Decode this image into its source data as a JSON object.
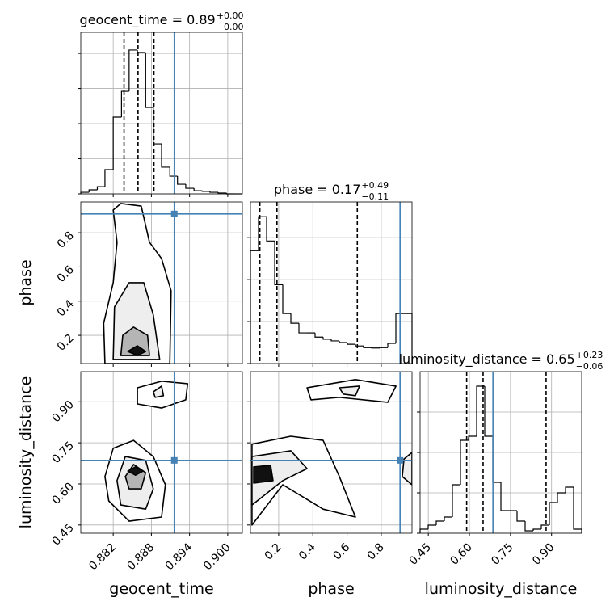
{
  "chart_data": {
    "type": "corner",
    "grid": true,
    "truth_color": "#4682b4",
    "hist_color": "#000000",
    "contour_color": "#000000",
    "contour_fills": [
      "#ffffff",
      "#eeeeee",
      "#b5b5b5",
      "#111111"
    ],
    "parameters": [
      {
        "name": "geocent_time",
        "title": "geocent_time = 0.89",
        "plus": "+0.00",
        "minus": "−0.00",
        "lim": [
          0.8769,
          0.9023
        ],
        "ticks": [
          0.882,
          0.888,
          0.894,
          {
            "value": 0.9,
            "label": "0.900"
          }
        ],
        "truth": 0.8916,
        "quantiles": [
          0.8837,
          0.8859,
          0.8884
        ],
        "hist": {
          "bins": [
            0.8769,
            0.8782,
            0.8795,
            0.8807,
            0.882,
            0.8833,
            0.8845,
            0.8858,
            0.8871,
            0.8883,
            0.8896,
            0.8909,
            0.8921,
            0.8934,
            0.8947,
            0.896,
            0.8972,
            0.8985,
            0.8998,
            0.901,
            0.9023
          ],
          "counts": [
            9,
            23,
            41,
            138,
            437,
            584,
            819,
            805,
            492,
            285,
            152,
            101,
            55,
            32,
            18,
            14,
            9,
            5,
            0,
            0
          ],
          "ylim": [
            0,
            920
          ],
          "yticks": [
            0,
            200,
            400,
            600,
            800
          ]
        }
      },
      {
        "name": "phase",
        "title": "phase = 0.17",
        "plus": "+0.49",
        "minus": "−0.11",
        "lim": [
          0.035,
          0.98
        ],
        "ticks": [
          0.2,
          0.4,
          0.6,
          0.8
        ],
        "truth": 0.91,
        "quantiles": [
          0.09,
          0.19,
          0.66
        ],
        "hist": {
          "bins": [
            0.035,
            0.0823,
            0.1295,
            0.1768,
            0.224,
            0.2713,
            0.3185,
            0.3658,
            0.413,
            0.4603,
            0.5075,
            0.5548,
            0.602,
            0.6493,
            0.6965,
            0.7438,
            0.791,
            0.8383,
            0.8855,
            0.9328,
            0.98
          ],
          "counts": [
            269,
            350,
            292,
            188,
            119,
            96,
            73,
            73,
            63,
            58,
            54,
            50,
            46,
            42,
            38,
            37,
            38,
            48,
            119,
            119
          ],
          "ylim": [
            0,
            385
          ],
          "yticks": [
            0,
            100,
            200,
            300
          ]
        }
      },
      {
        "name": "luminosity_distance",
        "title": "luminosity_distance = 0.65",
        "plus": "+0.23",
        "minus": "−0.06",
        "lim": [
          0.42,
          1.01
        ],
        "ticks": [
          0.45,
          {
            "value": 0.6,
            "label": "0.60"
          },
          0.75,
          {
            "value": 0.9,
            "label": "0.90"
          }
        ],
        "truth": 0.686,
        "quantiles": [
          0.59,
          0.65,
          0.88
        ],
        "hist": {
          "bins": [
            0.42,
            0.4495,
            0.479,
            0.5085,
            0.538,
            0.5675,
            0.597,
            0.6265,
            0.656,
            0.6855,
            0.715,
            0.7445,
            0.774,
            0.8035,
            0.833,
            0.8625,
            0.892,
            0.9215,
            0.951,
            0.9805,
            1.01
          ],
          "counts": [
            10,
            20,
            30,
            40,
            120,
            230,
            240,
            364,
            240,
            126,
            56,
            56,
            30,
            6,
            10,
            20,
            76,
            100,
            114,
            10
          ],
          "ylim": [
            0,
            400
          ],
          "yticks": [
            0,
            100,
            200,
            300
          ]
        }
      }
    ],
    "pairs": [
      {
        "contours": [
          {
            "level": 0,
            "x": [
              0.8807,
              0.8805,
              0.882,
              0.8826,
              0.882,
              0.8832,
              0.8864,
              0.8877,
              0.8896,
              0.8911,
              0.8909
            ],
            "y": [
              0.035,
              0.271,
              0.508,
              0.744,
              0.933,
              0.971,
              0.956,
              0.744,
              0.649,
              0.46,
              0.035
            ]
          },
          {
            "level": 1,
            "x": [
              0.882,
              0.8822,
              0.8845,
              0.8868,
              0.8883,
              0.8893
            ],
            "y": [
              0.059,
              0.366,
              0.508,
              0.508,
              0.319,
              0.059
            ]
          },
          {
            "level": 2,
            "x": [
              0.8832,
              0.8835,
              0.8852,
              0.8874,
              0.8877
            ],
            "y": [
              0.082,
              0.2,
              0.248,
              0.2,
              0.082
            ]
          },
          {
            "level": 3,
            "x": [
              0.8843,
              0.8858,
              0.8871,
              0.8858
            ],
            "y": [
              0.106,
              0.139,
              0.106,
              0.082
            ]
          }
        ]
      },
      {
        "contours": [
          {
            "level": 0,
            "x": [
              0.8858,
              0.8896,
              0.8937,
              0.8934,
              0.8896,
              0.8858
            ],
            "y": [
              0.951,
              0.975,
              0.966,
              0.907,
              0.877,
              0.892
            ]
          },
          {
            "level": 1,
            "x": [
              0.8883,
              0.8896,
              0.8899,
              0.8886
            ],
            "y": [
              0.936,
              0.957,
              0.922,
              0.916
            ]
          },
          {
            "level": 0,
            "x": [
              0.8807,
              0.882,
              0.8852,
              0.8883,
              0.8902,
              0.8896,
              0.8845,
              0.8813
            ],
            "y": [
              0.627,
              0.73,
              0.759,
              0.7,
              0.597,
              0.479,
              0.464,
              0.538
            ]
          },
          {
            "level": 1,
            "x": [
              0.8826,
              0.8839,
              0.8871,
              0.8883,
              0.8871,
              0.8832
            ],
            "y": [
              0.612,
              0.7,
              0.686,
              0.582,
              0.508,
              0.523
            ]
          },
          {
            "level": 2,
            "x": [
              0.8839,
              0.8852,
              0.8871,
              0.8864,
              0.8845
            ],
            "y": [
              0.627,
              0.671,
              0.641,
              0.582,
              0.582
            ]
          },
          {
            "level": 3,
            "x": [
              0.8843,
              0.8855,
              0.8867,
              0.8855
            ],
            "y": [
              0.647,
              0.662,
              0.647,
              0.632
            ]
          }
        ]
      },
      {
        "contours": [
          {
            "level": 0,
            "x": [
              0.366,
              0.649,
              0.886,
              0.838,
              0.555,
              0.389
            ],
            "y": [
              0.951,
              0.981,
              0.957,
              0.898,
              0.916,
              0.907
            ]
          },
          {
            "level": 1,
            "x": [
              0.555,
              0.673,
              0.649,
              0.578
            ],
            "y": [
              0.951,
              0.957,
              0.922,
              0.928
            ]
          },
          {
            "level": 0,
            "x": [
              0.044,
              0.271,
              0.46,
              0.555,
              0.649,
              0.46,
              0.224,
              0.044
            ],
            "y": [
              0.745,
              0.774,
              0.759,
              0.627,
              0.479,
              0.508,
              0.597,
              0.45
            ]
          },
          {
            "level": 1,
            "x": [
              0.044,
              0.271,
              0.366,
              0.224,
              0.044
            ],
            "y": [
              0.7,
              0.721,
              0.656,
              0.612,
              0.523
            ]
          },
          {
            "level": 3,
            "x": [
              0.054,
              0.153,
              0.167,
              0.054
            ],
            "y": [
              0.662,
              0.668,
              0.612,
              0.603
            ]
          },
          {
            "level": 1,
            "x": [
              0.98,
              0.933,
              0.923,
              0.98
            ],
            "y": [
              0.715,
              0.691,
              0.627,
              0.597
            ]
          }
        ]
      }
    ]
  }
}
